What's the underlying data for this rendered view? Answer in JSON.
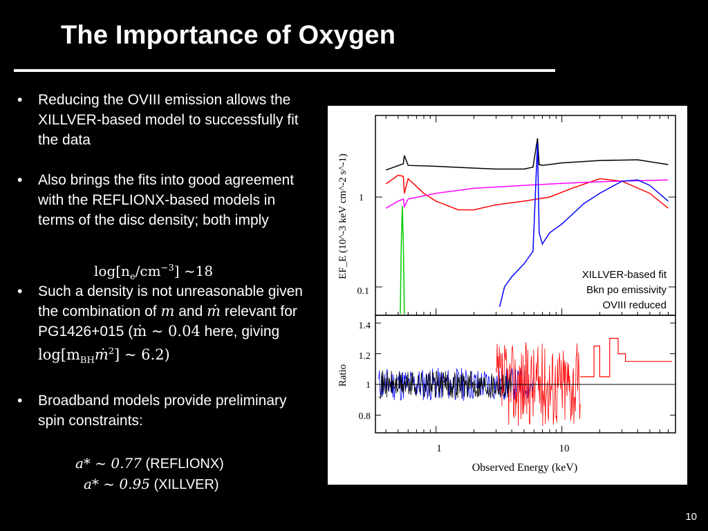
{
  "slide": {
    "title": "The Importance of Oxygen",
    "page_number": "10"
  },
  "bullets": {
    "b1": "Reducing the OVIII emission allows the XILLVER-based model to successfully fit the data",
    "b2": "Also brings the fits into good agreement with the REFLIONX-based models in terms of the disc density; both imply",
    "b3_pre": "Such a density is not unreasonable given the combination of ",
    "b3_m": "m",
    "b3_and": " and ",
    "b3_mdot": "ṁ",
    "b3_rel": " relevant for PG1426+015 (",
    "b3_mdot_val": "ṁ ~ 0.04",
    "b3_here": " here, giving ",
    "b3_log_val": "log[m",
    "b3_bh": "BH",
    "b3_tail": "ṁ",
    "b3_tail_sup": "2",
    "b3_end": "] ~ 6.2)",
    "b4": "Broadband models provide preliminary spin constraints:"
  },
  "equations": {
    "density": "log[n",
    "density_e": "e",
    "density_unit": "/cm",
    "density_exp": "−3",
    "density_val": "] ~18",
    "spin1_val": "a* ~ 0.77",
    "spin1_model": " (REFLIONX)",
    "spin2_val": "a* ~ 0.95",
    "spin2_model": " (XILLVER)"
  },
  "chart_data": [
    {
      "type": "line",
      "panel": "spectrum",
      "ylabel": "EF_E (10^-3 keV cm^-2 s^-1)",
      "yscale": "log",
      "xscale": "log",
      "y_ticks": [
        "1",
        "0.1"
      ],
      "annotation": [
        "XILLVER-based fit",
        "Bkn po emissivity",
        "OVIII reduced"
      ],
      "series": [
        {
          "color": "#000000",
          "x": [
            0.4,
            0.55,
            0.56,
            0.6,
            1,
            2,
            3,
            5,
            5.9,
            6.4,
            6.6,
            7,
            10,
            20,
            40,
            70
          ],
          "y": [
            2.0,
            2.35,
            2.9,
            2.25,
            2.2,
            2.1,
            2.05,
            2.05,
            2.15,
            4.5,
            2.3,
            2.25,
            2.4,
            2.55,
            2.6,
            2.3
          ]
        },
        {
          "color": "#ff0000",
          "x": [
            0.4,
            0.5,
            0.55,
            0.56,
            0.6,
            0.8,
            1,
            1.5,
            2,
            3,
            5,
            8,
            12,
            20,
            30,
            50,
            70
          ],
          "y": [
            1.4,
            1.75,
            1.7,
            1.1,
            1.6,
            1.1,
            0.9,
            0.72,
            0.72,
            0.82,
            0.9,
            1.0,
            1.25,
            1.6,
            1.5,
            1.1,
            0.75
          ]
        },
        {
          "color": "#ff00ff",
          "x": [
            0.4,
            0.5,
            0.55,
            0.56,
            0.6,
            1,
            2,
            5,
            10,
            20,
            40,
            70
          ],
          "y": [
            0.75,
            0.9,
            0.95,
            0.78,
            0.95,
            1.1,
            1.25,
            1.35,
            1.42,
            1.48,
            1.52,
            1.55
          ]
        },
        {
          "color": "#0000ff",
          "x": [
            3.2,
            3.5,
            4,
            5,
            5.9,
            6.4,
            6.6,
            7,
            8,
            10,
            15,
            20,
            30,
            40,
            50,
            70
          ],
          "y": [
            0.06,
            0.1,
            0.13,
            0.18,
            0.25,
            4.0,
            0.4,
            0.3,
            0.4,
            0.5,
            0.85,
            1.1,
            1.5,
            1.55,
            1.35,
            0.9
          ]
        },
        {
          "color": "#00cc00",
          "x": [
            0.52,
            0.53,
            0.54,
            0.55,
            0.56
          ],
          "y": [
            0.05,
            0.3,
            0.8,
            0.3,
            0.05
          ]
        }
      ]
    },
    {
      "type": "line",
      "panel": "ratio",
      "xlabel": "Observed Energy (keV)",
      "ylabel": "Ratio",
      "xscale": "log",
      "x_ticks": [
        "1",
        "10"
      ],
      "y_ticks": [
        "1.4",
        "1.2",
        "1",
        "0.8"
      ],
      "reference_line": 1
    }
  ]
}
